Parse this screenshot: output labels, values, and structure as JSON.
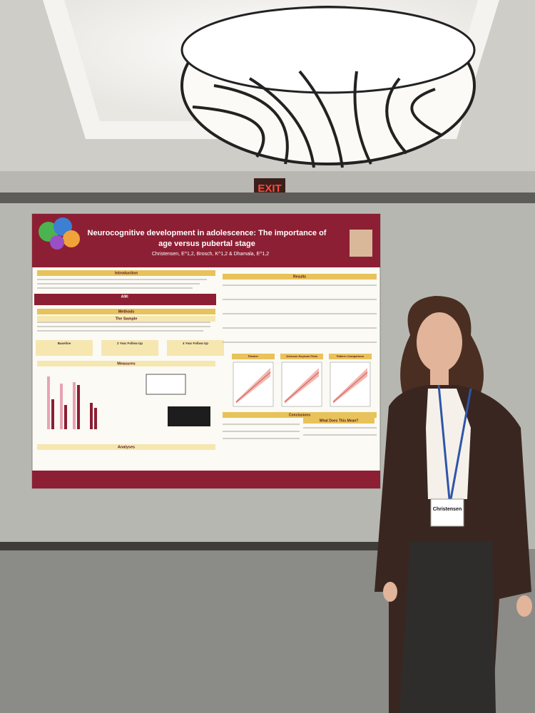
{
  "sign": {
    "text": "EXIT"
  },
  "poster": {
    "title_lines": [
      "Neurocognitive development in adolescence: The importance of",
      "age versus pubertal stage"
    ],
    "authors": "Christensen, E^1,2, Brosch, K^1,2 & Dhamala, E^1,2",
    "sections_left": [
      "Introduction",
      "Methods",
      "The Sample",
      "Measures",
      "Analyses"
    ],
    "sections_right": [
      "Results",
      "Conclusions",
      "What Does This Mean?"
    ],
    "aim": "AIM:",
    "sample_waves": [
      "Baseline",
      "2 Year Follow Up",
      "4 Year Follow Up"
    ],
    "plot_titles": [
      "Flanker",
      "Johnson Neyman Plots",
      "Pattern Comparison"
    ]
  },
  "badge": {
    "name": "Christensen"
  }
}
